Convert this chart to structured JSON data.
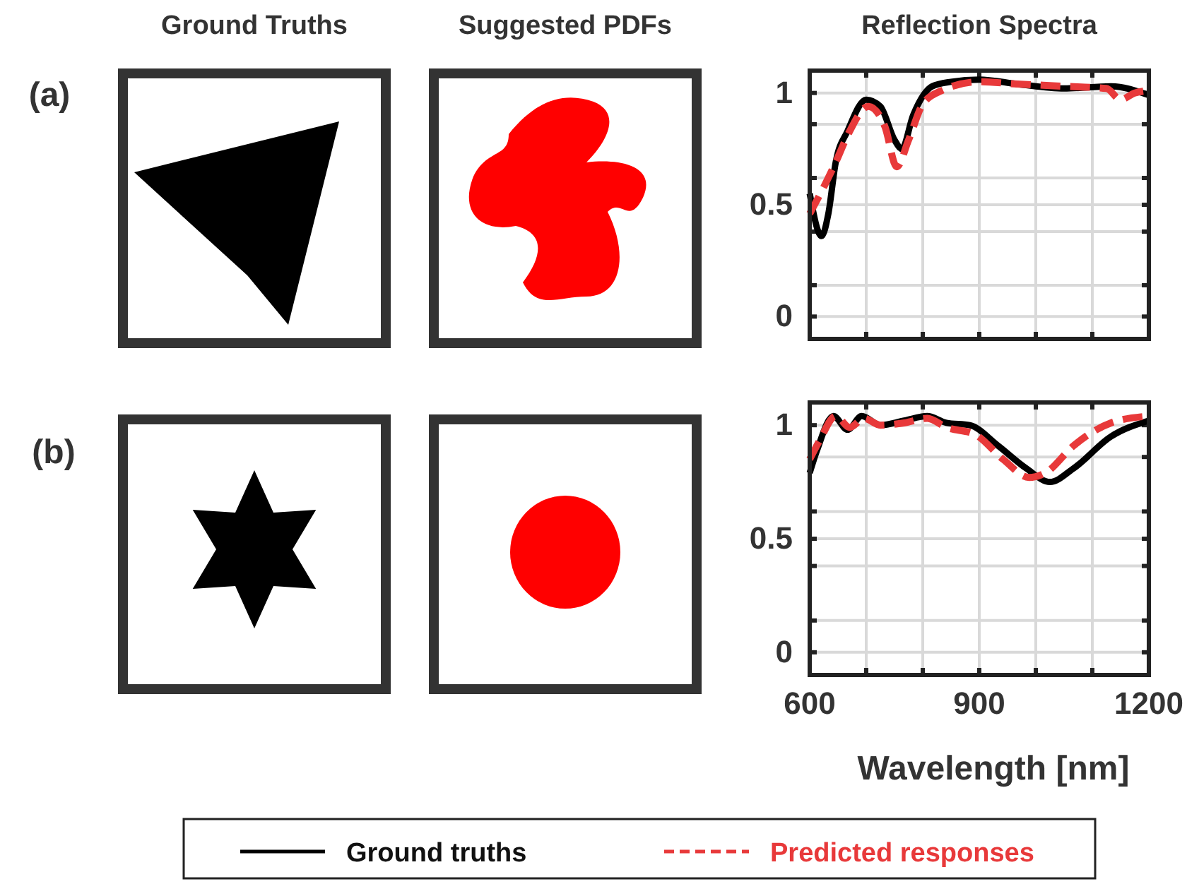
{
  "chart_data": [
    {
      "type": "line",
      "title": "Reflection Spectra",
      "annotations": [
        "(a)",
        "Ground Truths",
        "Suggested PDFs"
      ],
      "xlim": [
        600,
        1200
      ],
      "xticks": [
        600,
        {
          "value": 700,
          "label": null
        },
        {
          "value": 800,
          "label": null
        },
        900,
        {
          "value": 1000,
          "label": null
        },
        {
          "value": 1100,
          "label": null
        },
        1200
      ],
      "ylim": [
        -0.1,
        1.1
      ],
      "yticks": [
        0,
        {
          "value": 0.14,
          "label": null
        },
        {
          "value": 0.38,
          "label": null
        },
        0.5,
        {
          "value": 0.62,
          "label": null
        },
        {
          "value": 0.86,
          "label": null
        },
        1
      ],
      "grid": true,
      "tick_labels": "y",
      "legend": false,
      "series": [
        {
          "color": "#000000",
          "line_style": "solid",
          "x": [
            600,
            621,
            633,
            646,
            667,
            700,
            725,
            750,
            763,
            783,
            817,
            850,
            900,
            967,
            1050,
            1133,
            1200
          ],
          "values": [
            0.55,
            0.36,
            0.46,
            0.69,
            0.83,
            0.97,
            0.94,
            0.79,
            0.75,
            0.9,
            1.03,
            1.05,
            1.06,
            1.04,
            1.02,
            1.03,
            0.99
          ]
        },
        {
          "color": "#e8393a",
          "line_style": "dashed",
          "x": [
            600,
            625,
            646,
            667,
            704,
            733,
            754,
            775,
            800,
            833,
            900,
            967,
            1050,
            1125,
            1150,
            1175,
            1200
          ],
          "values": [
            0.46,
            0.58,
            0.69,
            0.81,
            0.94,
            0.85,
            0.67,
            0.79,
            0.95,
            1.01,
            1.05,
            1.04,
            1.03,
            1.02,
            0.97,
            1.0,
            1.01
          ]
        }
      ]
    },
    {
      "type": "line",
      "xlabel": "Wavelength [nm]",
      "annotations": [
        "(b)"
      ],
      "xlim": [
        600,
        1200
      ],
      "xticks": [
        600,
        {
          "value": 700,
          "label": null
        },
        {
          "value": 800,
          "label": null
        },
        900,
        {
          "value": 1000,
          "label": null
        },
        {
          "value": 1100,
          "label": null
        },
        1200
      ],
      "ylim": [
        -0.1,
        1.1
      ],
      "yticks": [
        0,
        {
          "value": 0.14,
          "label": null
        },
        {
          "value": 0.38,
          "label": null
        },
        0.5,
        {
          "value": 0.62,
          "label": null
        },
        {
          "value": 0.86,
          "label": null
        },
        1
      ],
      "grid": true,
      "legend": "bottom",
      "series": [
        {
          "name": "Ground truths",
          "color": "#000000",
          "line_style": "solid",
          "x": [
            600,
            613,
            642,
            667,
            692,
            725,
            767,
            808,
            842,
            883,
            933,
            983,
            1025,
            1067,
            1133,
            1200
          ],
          "values": [
            0.79,
            0.89,
            1.04,
            0.98,
            1.04,
            1.0,
            1.02,
            1.04,
            1.01,
            1.0,
            0.91,
            0.81,
            0.75,
            0.81,
            0.95,
            1.02
          ]
        },
        {
          "name": "Predicted responses",
          "color": "#e8393a",
          "line_style": "dashed",
          "x": [
            600,
            617,
            646,
            671,
            696,
            725,
            767,
            808,
            842,
            892,
            942,
            988,
            1017,
            1067,
            1133,
            1200
          ],
          "values": [
            0.85,
            0.93,
            1.04,
            0.99,
            1.03,
            1.0,
            1.01,
            1.03,
            0.99,
            0.96,
            0.85,
            0.77,
            0.79,
            0.91,
            1.01,
            1.04
          ]
        }
      ]
    }
  ]
}
